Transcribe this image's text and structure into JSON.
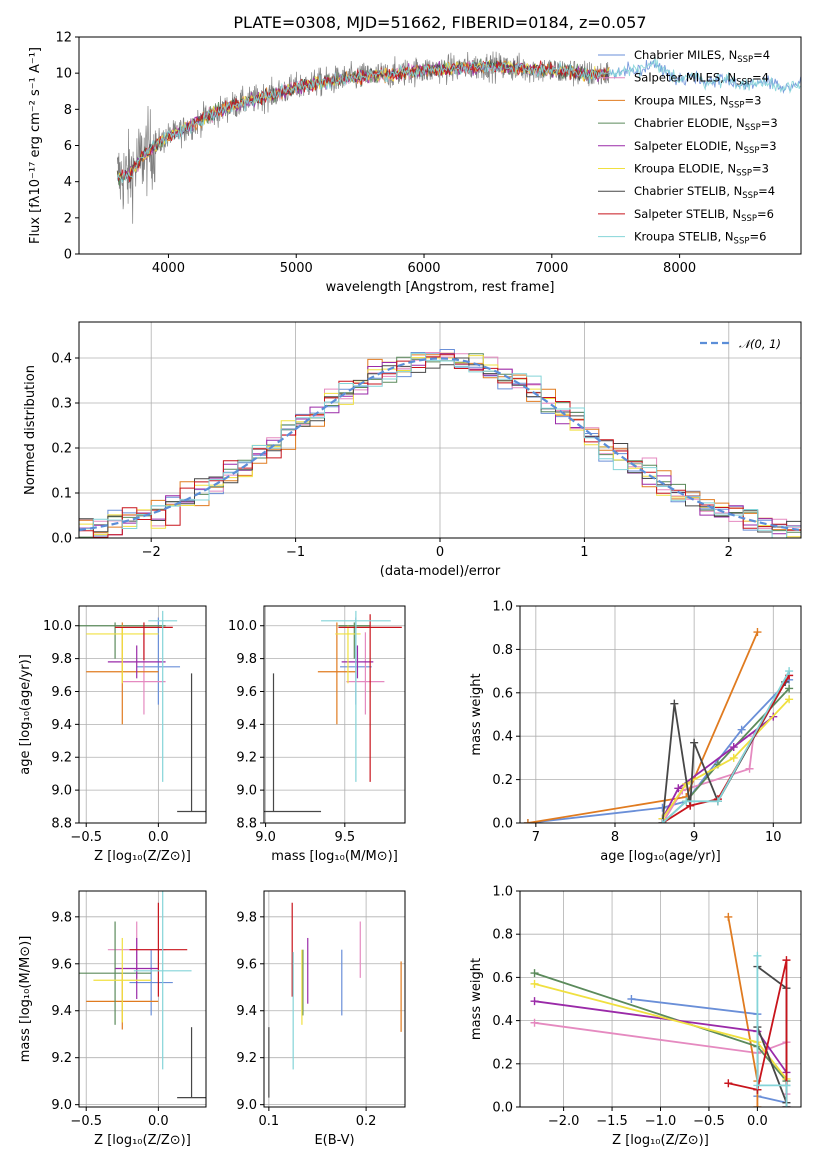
{
  "colors": [
    "#6a8fd8",
    "#e58ac0",
    "#e07b20",
    "#5b8a5b",
    "#9a2aa8",
    "#f0e040",
    "#474747",
    "#c8141c",
    "#84d4d8"
  ],
  "chart_data": [
    {
      "id": "spectrum",
      "type": "line",
      "title": "PLATE=0308, MJD=51662, FIBERID=0184, z=0.057",
      "xlabel": "wavelength [Angstrom, rest frame]",
      "ylabel": "Flux [fλ10⁻¹⁷ erg cm⁻² s⁻¹ A⁻¹]",
      "xlim": [
        3300,
        8950
      ],
      "ylim": [
        0,
        12
      ],
      "xticks": [
        4000,
        5000,
        6000,
        7000,
        8000
      ],
      "yticks": [
        0,
        2,
        4,
        6,
        8,
        10,
        12
      ],
      "legend_position": "right",
      "legend": [
        {
          "label": "Chabrier MILES, N",
          "sub": "SSP",
          "tail": "=4"
        },
        {
          "label": "Salpeter MILES, N",
          "sub": "SSP",
          "tail": "=4"
        },
        {
          "label": "Kroupa MILES, N",
          "sub": "SSP",
          "tail": "=3"
        },
        {
          "label": "Chabrier ELODIE, N",
          "sub": "SSP",
          "tail": "=3"
        },
        {
          "label": "Salpeter ELODIE, N",
          "sub": "SSP",
          "tail": "=3"
        },
        {
          "label": "Kroupa ELODIE, N",
          "sub": "SSP",
          "tail": "=3"
        },
        {
          "label": "Chabrier STELIB, N",
          "sub": "SSP",
          "tail": "=4"
        },
        {
          "label": "Salpeter STELIB, N",
          "sub": "SSP",
          "tail": "=6"
        },
        {
          "label": "Kroupa STELIB, N",
          "sub": "SSP",
          "tail": "=6"
        }
      ],
      "continuum": {
        "x": [
          3600,
          3700,
          3800,
          3900,
          4000,
          4100,
          4200,
          4300,
          4500,
          4700,
          4900,
          5100,
          5300,
          5500,
          5700,
          5900,
          6100,
          6300,
          6500,
          6700,
          6900,
          7100,
          7300,
          7500,
          7700,
          7800,
          7900,
          8000,
          8100,
          8200,
          8300,
          8400,
          8500,
          8600,
          8700,
          8800,
          8900
        ],
        "y": [
          4.2,
          4.4,
          5.4,
          6.0,
          6.5,
          6.8,
          7.2,
          7.6,
          8.2,
          8.6,
          9.0,
          9.4,
          9.6,
          9.8,
          9.9,
          10.1,
          10.2,
          10.3,
          10.4,
          10.3,
          10.2,
          10.1,
          9.9,
          10.0,
          10.2,
          10.5,
          10.0,
          9.7,
          9.9,
          9.5,
          9.7,
          9.6,
          9.3,
          9.5,
          9.4,
          9.2,
          9.4
        ]
      }
    },
    {
      "id": "residual-hist",
      "type": "line",
      "xlabel": "(data-model)/error",
      "ylabel": "Normed distribution",
      "xlim": [
        -2.5,
        2.5
      ],
      "ylim": [
        0,
        0.48
      ],
      "xticks": [
        -2,
        -1,
        0,
        1,
        2
      ],
      "yticks": [
        0.0,
        0.1,
        0.2,
        0.3,
        0.4
      ],
      "legend": [
        "𝒩(0, 1)"
      ],
      "normal_mu": 0,
      "normal_sigma": 1
    },
    {
      "id": "age-vs-z",
      "type": "scatter",
      "xlabel": "Z [log₁₀(Z/Z⊙)]",
      "ylabel": "age  [log₁₀(age/yr)]",
      "xlim": [
        -0.55,
        0.33
      ],
      "ylim": [
        8.8,
        10.12
      ],
      "xticks": [
        -0.5,
        0.0
      ],
      "yticks": [
        8.8,
        9.0,
        9.2,
        9.4,
        9.6,
        9.8,
        10.0
      ],
      "points": [
        {
          "x": 0.0,
          "xerr": 0.15,
          "y": 9.75,
          "yerr": [
            0.23,
            0.3
          ]
        },
        {
          "x": -0.1,
          "xerr": 0.15,
          "y": 9.66,
          "yerr": [
            0.2,
            0.3
          ]
        },
        {
          "x": -0.25,
          "xerr": 0.25,
          "y": 9.72,
          "yerr": [
            0.32,
            0.3
          ]
        },
        {
          "x": -0.3,
          "xerr": 0.35,
          "y": 10.0,
          "yerr": [
            0.2,
            0.02
          ]
        },
        {
          "x": -0.15,
          "xerr": 0.2,
          "y": 9.78,
          "yerr": [
            0.1,
            0.1
          ]
        },
        {
          "x": -0.25,
          "xerr": 0.25,
          "y": 9.95,
          "yerr": [
            0.3,
            0.05
          ]
        },
        {
          "x": 0.23,
          "xerr": 0.1,
          "y": 8.87,
          "yerr": [
            0.0,
            0.84
          ]
        },
        {
          "x": -0.1,
          "xerr": 0.2,
          "y": 9.99,
          "yerr": [
            0.2,
            0.03
          ]
        },
        {
          "x": 0.03,
          "xerr": 0.1,
          "y": 10.03,
          "yerr": [
            0.98,
            0.06
          ]
        }
      ]
    },
    {
      "id": "age-vs-mass",
      "type": "scatter",
      "xlabel": "mass [log₁₀(M/M⊙)]",
      "ylabel": "",
      "xlim": [
        8.99,
        9.88
      ],
      "ylim": [
        8.8,
        10.12
      ],
      "xticks": [
        9.0,
        9.5
      ],
      "yticks": [
        8.8,
        9.0,
        9.2,
        9.4,
        9.6,
        9.8,
        10.0
      ],
      "points": [
        {
          "x": 9.57,
          "xerr": 0.1,
          "y": 9.75,
          "yerr": [
            0.23,
            0.3
          ]
        },
        {
          "x": 9.63,
          "xerr": 0.12,
          "y": 9.66,
          "yerr": [
            0.2,
            0.3
          ]
        },
        {
          "x": 9.45,
          "xerr": 0.12,
          "y": 9.72,
          "yerr": [
            0.32,
            0.3
          ]
        },
        {
          "x": 9.56,
          "xerr": 0.1,
          "y": 10.0,
          "yerr": [
            0.2,
            0.02
          ]
        },
        {
          "x": 9.58,
          "xerr": 0.1,
          "y": 9.78,
          "yerr": [
            0.1,
            0.1
          ]
        },
        {
          "x": 9.52,
          "xerr": 0.08,
          "y": 9.95,
          "yerr": [
            0.3,
            0.05
          ]
        },
        {
          "x": 9.05,
          "xerr": 0.3,
          "y": 8.87,
          "yerr": [
            0.0,
            0.84
          ]
        },
        {
          "x": 9.66,
          "xerr": 0.2,
          "y": 9.99,
          "yerr": [
            0.94,
            0.08
          ]
        },
        {
          "x": 9.57,
          "xerr": 0.22,
          "y": 10.03,
          "yerr": [
            0.98,
            0.06
          ]
        }
      ]
    },
    {
      "id": "weight-vs-age",
      "type": "line",
      "xlabel": "age  [log₁₀(age/yr)]",
      "ylabel": "mass weight",
      "xlim": [
        6.8,
        10.35
      ],
      "ylim": [
        0,
        1.0
      ],
      "xticks": [
        7,
        8,
        9,
        10
      ],
      "yticks": [
        0.0,
        0.2,
        0.4,
        0.6,
        0.8,
        1.0
      ],
      "series": [
        {
          "x": [
            6.9,
            8.6,
            8.9,
            9.6,
            10.2
          ],
          "y": [
            0.0,
            0.07,
            0.1,
            0.43,
            0.66
          ]
        },
        {
          "x": [
            8.6,
            8.85,
            9.7,
            9.75,
            10.2
          ],
          "y": [
            0.0,
            0.15,
            0.25,
            0.4,
            0.68
          ]
        },
        {
          "x": [
            6.9,
            8.9,
            9.8
          ],
          "y": [
            0.0,
            0.12,
            0.88
          ]
        },
        {
          "x": [
            8.6,
            8.9,
            9.3,
            10.2
          ],
          "y": [
            0.0,
            0.1,
            0.27,
            0.62
          ]
        },
        {
          "x": [
            8.6,
            8.8,
            9.5,
            10.0
          ],
          "y": [
            0.02,
            0.16,
            0.35,
            0.49
          ]
        },
        {
          "x": [
            8.6,
            8.9,
            9.5,
            10.2
          ],
          "y": [
            0.02,
            0.18,
            0.3,
            0.57
          ]
        },
        {
          "x": [
            8.6,
            8.75,
            8.95,
            9.0,
            9.3,
            10.15
          ],
          "y": [
            0.0,
            0.55,
            0.08,
            0.37,
            0.1,
            0.65
          ]
        },
        {
          "x": [
            8.6,
            8.95,
            9.3,
            10.2
          ],
          "y": [
            0.0,
            0.08,
            0.11,
            0.68
          ]
        },
        {
          "x": [
            8.6,
            8.9,
            9.3,
            10.2
          ],
          "y": [
            0.0,
            0.1,
            0.1,
            0.7
          ]
        }
      ]
    },
    {
      "id": "mass-vs-z",
      "type": "scatter",
      "xlabel": "Z [log₁₀(Z/Z⊙)]",
      "ylabel": "mass [log₁₀(M/M⊙)]",
      "xlim": [
        -0.55,
        0.33
      ],
      "ylim": [
        8.99,
        9.91
      ],
      "xticks": [
        -0.5,
        0.0
      ],
      "yticks": [
        9.0,
        9.2,
        9.4,
        9.6,
        9.8
      ],
      "points": [
        {
          "x": -0.05,
          "xerr": 0.15,
          "y": 9.52,
          "yerr": 0.14
        },
        {
          "x": -0.15,
          "xerr": 0.2,
          "y": 9.66,
          "yerr": 0.12
        },
        {
          "x": -0.25,
          "xerr": 0.25,
          "y": 9.44,
          "yerr": 0.12
        },
        {
          "x": -0.3,
          "xerr": 0.25,
          "y": 9.56,
          "yerr": 0.22
        },
        {
          "x": -0.15,
          "xerr": 0.15,
          "y": 9.58,
          "yerr": 0.13
        },
        {
          "x": -0.25,
          "xerr": 0.2,
          "y": 9.53,
          "yerr": 0.18
        },
        {
          "x": 0.23,
          "xerr": 0.1,
          "y": 9.03,
          "yerr": [
            0.0,
            0.3
          ]
        },
        {
          "x": 0.0,
          "xerr": 0.2,
          "y": 9.66,
          "yerr": 0.2
        },
        {
          "x": 0.03,
          "xerr": 0.2,
          "y": 9.57,
          "yerr": 0.42
        }
      ]
    },
    {
      "id": "mass-vs-ebv",
      "type": "scatter",
      "xlabel": "E(B-V)",
      "ylabel": "",
      "xlim": [
        0.095,
        0.24
      ],
      "ylim": [
        8.99,
        9.91
      ],
      "xticks": [
        0.1,
        0.2
      ],
      "yticks": [
        9.0,
        9.2,
        9.4,
        9.6,
        9.8
      ],
      "points": [
        {
          "x": 0.175,
          "y": 9.52,
          "yerr": 0.14
        },
        {
          "x": 0.194,
          "y": 9.66,
          "yerr": 0.12
        },
        {
          "x": 0.236,
          "y": 9.46,
          "yerr": 0.15
        },
        {
          "x": 0.135,
          "y": 9.52,
          "yerr": 0.14
        },
        {
          "x": 0.14,
          "y": 9.57,
          "yerr": 0.14
        },
        {
          "x": 0.134,
          "y": 9.5,
          "yerr": 0.16
        },
        {
          "x": 0.1,
          "y": 9.18,
          "yerr": 0.15
        },
        {
          "x": 0.124,
          "y": 9.66,
          "yerr": 0.2
        },
        {
          "x": 0.125,
          "y": 9.4,
          "yerr": 0.25
        }
      ]
    },
    {
      "id": "weight-vs-z",
      "type": "line",
      "xlabel": "Z [log₁₀(Z/Z⊙)]",
      "ylabel": "mass weight",
      "xlim": [
        -2.45,
        0.45
      ],
      "ylim": [
        0,
        1.0
      ],
      "xticks": [
        -2.0,
        -1.5,
        -1.0,
        -0.5,
        0.0
      ],
      "yticks": [
        0.0,
        0.2,
        0.4,
        0.6,
        0.8,
        1.0
      ],
      "series": [
        {
          "x": [
            -1.3,
            0.0,
            0.0,
            0.3,
            0.3
          ],
          "y": [
            0.5,
            0.43,
            0.05,
            0.02,
            0.1
          ]
        },
        {
          "x": [
            -2.3,
            0.0,
            0.3,
            0.3
          ],
          "y": [
            0.39,
            0.25,
            0.3,
            0.06
          ]
        },
        {
          "x": [
            -0.3,
            0.0,
            0.0
          ],
          "y": [
            0.88,
            0.12,
            0.0
          ]
        },
        {
          "x": [
            -2.3,
            0.0,
            0.3,
            0.3
          ],
          "y": [
            0.62,
            0.28,
            0.12,
            0.0
          ]
        },
        {
          "x": [
            -2.3,
            0.0,
            0.3,
            0.3
          ],
          "y": [
            0.49,
            0.35,
            0.16,
            0.0
          ]
        },
        {
          "x": [
            -2.3,
            0.0,
            0.3
          ],
          "y": [
            0.57,
            0.3,
            0.13
          ]
        },
        {
          "x": [
            0.0,
            0.3,
            0.3,
            0.0,
            0.0
          ],
          "y": [
            0.65,
            0.55,
            0.02,
            0.37,
            0.08
          ]
        },
        {
          "x": [
            -0.3,
            0.0,
            0.3,
            0.3
          ],
          "y": [
            0.11,
            0.08,
            0.68,
            0.0
          ]
        },
        {
          "x": [
            0.0,
            0.0,
            0.3,
            0.3
          ],
          "y": [
            0.7,
            0.1,
            0.1,
            0.0
          ]
        }
      ]
    }
  ]
}
